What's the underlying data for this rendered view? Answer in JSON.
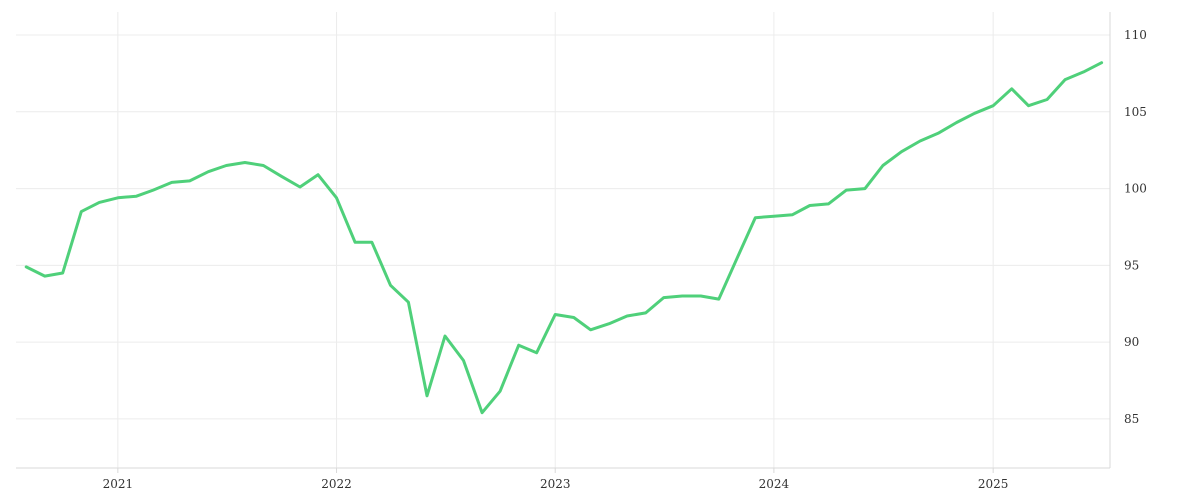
{
  "colors": {
    "series": "#4fd07a",
    "background": "#ffffff"
  },
  "chart_data": {
    "type": "line",
    "title": "",
    "xlabel": "",
    "ylabel": "",
    "grid": true,
    "y_axis_side": "right",
    "x_ticks": [
      {
        "value": "2021-01-01",
        "label": "2021"
      },
      {
        "value": "2022-01-01",
        "label": "2022"
      },
      {
        "value": "2023-01-01",
        "label": "2023"
      },
      {
        "value": "2024-01-01",
        "label": "2024"
      },
      {
        "value": "2025-01-01",
        "label": "2025"
      }
    ],
    "y_ticks": [
      85,
      90,
      95,
      100,
      105,
      110
    ],
    "xlim": [
      "2020-07-15",
      "2025-07-15"
    ],
    "ylim": [
      81.8,
      111.5
    ],
    "series": [
      {
        "x": [
          "2020-08-01",
          "2020-09-01",
          "2020-10-01",
          "2020-11-01",
          "2020-12-01",
          "2021-01-01",
          "2021-02-01",
          "2021-03-01",
          "2021-04-01",
          "2021-05-01",
          "2021-06-01",
          "2021-07-01",
          "2021-08-01",
          "2021-09-01",
          "2021-10-01",
          "2021-11-01",
          "2021-12-01",
          "2022-01-01",
          "2022-02-01",
          "2022-03-01",
          "2022-04-01",
          "2022-05-01",
          "2022-06-01",
          "2022-07-01",
          "2022-08-01",
          "2022-09-01",
          "2022-10-01",
          "2022-11-01",
          "2022-12-01",
          "2023-01-01",
          "2023-02-01",
          "2023-03-01",
          "2023-04-01",
          "2023-05-01",
          "2023-06-01",
          "2023-07-01",
          "2023-08-01",
          "2023-09-01",
          "2023-10-01",
          "2023-11-01",
          "2023-12-01",
          "2024-01-01",
          "2024-02-01",
          "2024-03-01",
          "2024-04-01",
          "2024-05-01",
          "2024-06-01",
          "2024-07-01",
          "2024-08-01",
          "2024-09-01",
          "2024-10-01",
          "2024-11-01",
          "2024-12-01",
          "2025-01-01",
          "2025-02-01",
          "2025-03-01",
          "2025-04-01",
          "2025-05-01",
          "2025-06-01",
          "2025-07-01"
        ],
        "values": [
          94.9,
          94.3,
          94.5,
          98.5,
          99.1,
          99.4,
          99.5,
          99.9,
          100.4,
          100.5,
          101.1,
          101.5,
          101.7,
          101.5,
          100.8,
          100.1,
          100.9,
          99.4,
          96.5,
          96.5,
          93.7,
          92.6,
          86.5,
          90.4,
          88.8,
          85.4,
          86.8,
          89.8,
          89.3,
          91.8,
          91.6,
          90.8,
          91.2,
          91.7,
          91.9,
          92.9,
          93.0,
          93.0,
          92.8,
          95.5,
          98.1,
          98.2,
          98.3,
          98.9,
          99.0,
          99.9,
          100.0,
          101.5,
          102.4,
          103.1,
          103.6,
          104.3,
          104.9,
          105.4,
          106.5,
          105.4,
          105.8,
          107.1,
          107.6,
          108.2
        ]
      }
    ]
  }
}
